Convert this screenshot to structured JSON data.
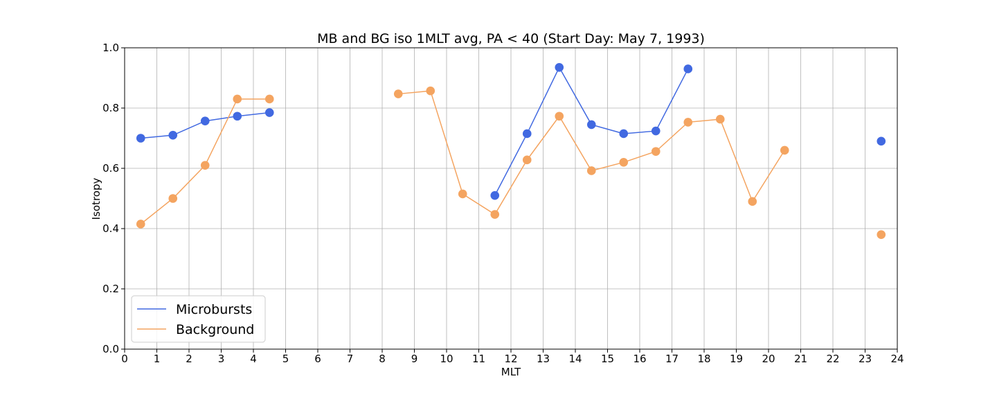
{
  "chart_data": {
    "type": "line",
    "title": "MB and BG iso 1MLT avg, PA < 40 (Start Day: May 7, 1993)",
    "xlabel": "MLT",
    "ylabel": "Isotropy",
    "xlim": [
      0,
      24
    ],
    "ylim": [
      0,
      1
    ],
    "xticks": [
      0,
      1,
      2,
      3,
      4,
      5,
      6,
      7,
      8,
      9,
      10,
      11,
      12,
      13,
      14,
      15,
      16,
      17,
      18,
      19,
      20,
      21,
      22,
      23,
      24
    ],
    "yticks": [
      0.0,
      0.2,
      0.4,
      0.6,
      0.8,
      1.0
    ],
    "grid": true,
    "legend_position": "lower-left",
    "series": [
      {
        "name": "Microbursts",
        "color": "#4169e1",
        "x": [
          0.5,
          1.5,
          2.5,
          3.5,
          4.5,
          11.5,
          12.5,
          13.5,
          14.5,
          15.5,
          16.5,
          17.5,
          23.5
        ],
        "y": [
          0.7,
          0.71,
          0.757,
          0.773,
          0.785,
          0.51,
          0.715,
          0.935,
          0.745,
          0.715,
          0.724,
          0.93,
          0.69
        ],
        "connected_segments": [
          [
            0,
            4
          ],
          [
            5,
            11
          ],
          [
            12,
            12
          ]
        ]
      },
      {
        "name": "Background",
        "color": "#f4a460",
        "x": [
          0.5,
          1.5,
          2.5,
          3.5,
          4.5,
          8.5,
          9.5,
          10.5,
          11.5,
          12.5,
          13.5,
          14.5,
          15.5,
          16.5,
          17.5,
          18.5,
          19.5,
          20.5,
          23.5
        ],
        "y": [
          0.415,
          0.5,
          0.61,
          0.83,
          0.83,
          0.847,
          0.857,
          0.515,
          0.447,
          0.628,
          0.773,
          0.592,
          0.62,
          0.656,
          0.753,
          0.763,
          0.49,
          0.66,
          0.38
        ],
        "connected_segments": [
          [
            0,
            4
          ],
          [
            5,
            17
          ],
          [
            18,
            18
          ]
        ]
      }
    ]
  }
}
